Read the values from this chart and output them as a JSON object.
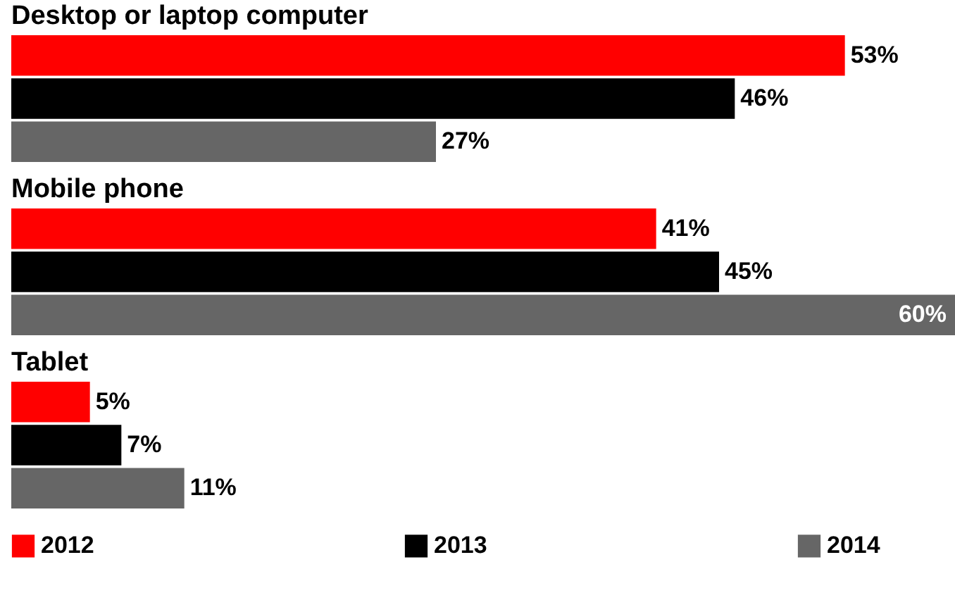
{
  "chart_data": {
    "type": "bar",
    "orientation": "horizontal",
    "categories": [
      "Desktop or laptop computer",
      "Mobile phone",
      "Tablet"
    ],
    "series": [
      {
        "name": "2012",
        "color": "#ff0000",
        "values": [
          53,
          41,
          5
        ],
        "value_labels": [
          "53%",
          "41%",
          "5%"
        ]
      },
      {
        "name": "2013",
        "color": "#000000",
        "values": [
          46,
          45,
          7
        ],
        "value_labels": [
          "46%",
          "45%",
          "7%"
        ]
      },
      {
        "name": "2014",
        "color": "#666666",
        "values": [
          27,
          60,
          11
        ],
        "value_labels": [
          "27%",
          "60%",
          "11%"
        ]
      }
    ],
    "legend": "bottom"
  }
}
